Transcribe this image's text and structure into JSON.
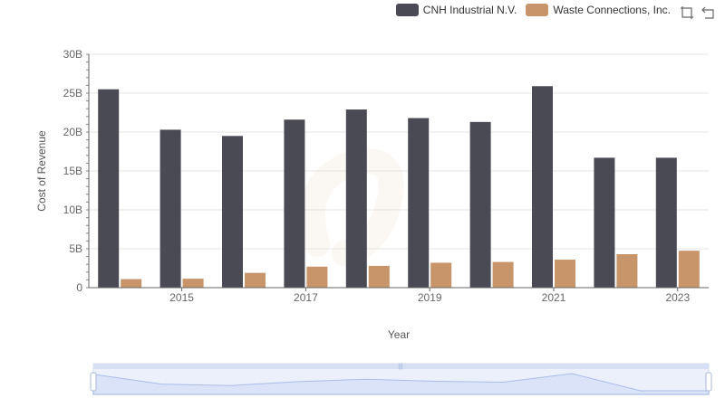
{
  "chart_data": {
    "type": "bar",
    "xlabel": "Year",
    "ylabel": "Cost of Revenue",
    "ylim": [
      0,
      30000000000
    ],
    "yticks": [
      "0",
      "5B",
      "10B",
      "15B",
      "20B",
      "25B",
      "30B"
    ],
    "categories": [
      "2014",
      "2015",
      "2016",
      "2017",
      "2018",
      "2019",
      "2020",
      "2021",
      "2022",
      "2023"
    ],
    "xtick_labels": [
      "2015",
      "2017",
      "2019",
      "2021",
      "2023"
    ],
    "series": [
      {
        "name": "CNH Industrial N.V.",
        "color": "#4a4a55",
        "values": [
          25500000000,
          20300000000,
          19500000000,
          21600000000,
          22900000000,
          21800000000,
          21300000000,
          25900000000,
          16700000000,
          16700000000
        ]
      },
      {
        "name": "Waste Connections, Inc.",
        "color": "#c8956a",
        "values": [
          1100000000,
          1150000000,
          1900000000,
          2700000000,
          2800000000,
          3200000000,
          3300000000,
          3600000000,
          4300000000,
          4750000000
        ]
      }
    ],
    "grid": true,
    "legend_position": "top-right"
  },
  "toolbox": {
    "icons": [
      "zoom-icon",
      "restore-icon"
    ]
  }
}
